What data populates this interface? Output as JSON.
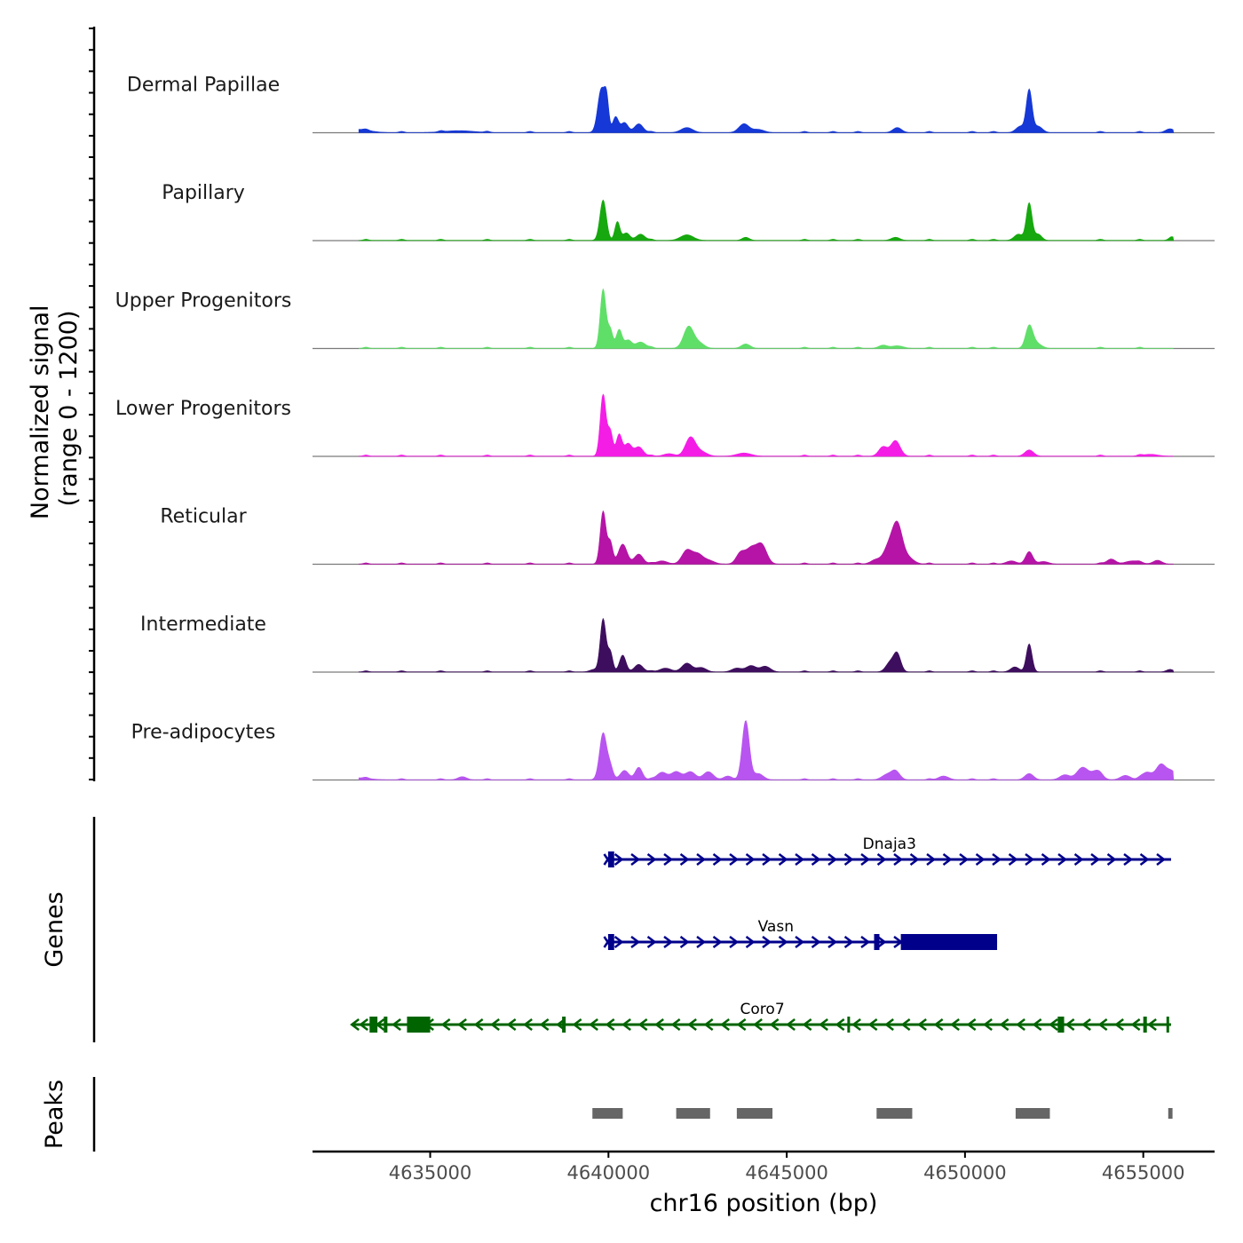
{
  "chart_data": {
    "type": "area",
    "chromosome": "chr16",
    "xlabel": "chr16 position (bp)",
    "xlim": [
      4631700,
      4657000
    ],
    "xticks": [
      4635000,
      4640000,
      4645000,
      4650000,
      4655000
    ],
    "xtick_labels": [
      "4635000",
      "4640000",
      "4645000",
      "4650000",
      "4655000"
    ],
    "signal_ylabel_line1": "Normalized signal",
    "signal_ylabel_line2": "(range 0 - 1200)",
    "signal_range": [
      0,
      1200
    ],
    "tracks": [
      {
        "name": "Dermal Papillae",
        "color": "#1538d6",
        "peaks": [
          [
            4633000,
            0.5,
            300
          ],
          [
            4635800,
            0.3,
            400
          ],
          [
            4639800,
            7,
            100
          ],
          [
            4639950,
            4.5,
            60
          ],
          [
            4640200,
            2.5,
            80
          ],
          [
            4640450,
            1.6,
            100
          ],
          [
            4640850,
            1.4,
            120
          ],
          [
            4642200,
            0.8,
            160
          ],
          [
            4643800,
            1.4,
            140
          ],
          [
            4644200,
            0.5,
            160
          ],
          [
            4648100,
            0.8,
            120
          ],
          [
            4651550,
            1,
            120
          ],
          [
            4651800,
            6.8,
            80
          ],
          [
            4652050,
            1,
            120
          ],
          [
            4655750,
            0.6,
            120
          ]
        ]
      },
      {
        "name": "Papillary",
        "color": "#16a80e",
        "peaks": [
          [
            4639850,
            6.5,
            90
          ],
          [
            4640250,
            3,
            70
          ],
          [
            4640500,
            1.2,
            100
          ],
          [
            4640900,
            1,
            120
          ],
          [
            4642200,
            0.9,
            180
          ],
          [
            4643850,
            0.5,
            100
          ],
          [
            4648050,
            0.5,
            120
          ],
          [
            4651500,
            1,
            120
          ],
          [
            4651800,
            6,
            80
          ],
          [
            4652050,
            1,
            100
          ],
          [
            4655800,
            0.6,
            80
          ]
        ]
      },
      {
        "name": "Upper Progenitors",
        "color": "#5fdf68",
        "peaks": [
          [
            4639850,
            9.5,
            80
          ],
          [
            4640050,
            3,
            70
          ],
          [
            4640300,
            3,
            80
          ],
          [
            4640550,
            1.3,
            100
          ],
          [
            4640900,
            1,
            140
          ],
          [
            4642250,
            3.5,
            140
          ],
          [
            4642550,
            0.8,
            140
          ],
          [
            4643850,
            0.7,
            120
          ],
          [
            4647700,
            0.5,
            120
          ],
          [
            4648100,
            0.4,
            160
          ],
          [
            4651800,
            3.5,
            100
          ],
          [
            4652000,
            0.8,
            140
          ]
        ]
      },
      {
        "name": "Lower Progenitors",
        "color": "#f41de6",
        "peaks": [
          [
            4639850,
            10,
            80
          ],
          [
            4640050,
            4,
            70
          ],
          [
            4640300,
            3.5,
            80
          ],
          [
            4640550,
            2,
            100
          ],
          [
            4640850,
            1.5,
            120
          ],
          [
            4641700,
            0.4,
            150
          ],
          [
            4642300,
            3,
            140
          ],
          [
            4642600,
            0.7,
            160
          ],
          [
            4643800,
            0.5,
            200
          ],
          [
            4647700,
            1.5,
            120
          ],
          [
            4648050,
            2.5,
            130
          ],
          [
            4651800,
            1,
            120
          ],
          [
            4655200,
            0.3,
            200
          ]
        ]
      },
      {
        "name": "Reticular",
        "color": "#b514a6",
        "peaks": [
          [
            4639850,
            8.5,
            80
          ],
          [
            4640050,
            3.5,
            70
          ],
          [
            4640400,
            3.2,
            120
          ],
          [
            4640850,
            1.6,
            120
          ],
          [
            4641500,
            0.5,
            150
          ],
          [
            4642200,
            2.2,
            140
          ],
          [
            4642500,
            1.5,
            140
          ],
          [
            4642800,
            0.6,
            160
          ],
          [
            4643700,
            1.7,
            120
          ],
          [
            4644000,
            2.5,
            150
          ],
          [
            4644300,
            3,
            140
          ],
          [
            4647500,
            0.7,
            140
          ],
          [
            4647850,
            2.5,
            140
          ],
          [
            4648100,
            6.2,
            140
          ],
          [
            4648400,
            1,
            160
          ],
          [
            4651300,
            0.5,
            140
          ],
          [
            4651800,
            2,
            100
          ],
          [
            4652200,
            0.4,
            140
          ],
          [
            4654100,
            0.8,
            120
          ],
          [
            4654700,
            0.5,
            200
          ],
          [
            4655400,
            0.6,
            120
          ]
        ]
      },
      {
        "name": "Intermediate",
        "color": "#3e0e5e",
        "peaks": [
          [
            4639600,
            0.4,
            120
          ],
          [
            4639850,
            8.5,
            80
          ],
          [
            4640050,
            3.2,
            70
          ],
          [
            4640400,
            2.7,
            90
          ],
          [
            4640850,
            1.2,
            120
          ],
          [
            4641600,
            0.6,
            160
          ],
          [
            4642200,
            1.4,
            140
          ],
          [
            4642600,
            0.7,
            140
          ],
          [
            4643600,
            0.6,
            140
          ],
          [
            4644000,
            1,
            140
          ],
          [
            4644400,
            0.9,
            140
          ],
          [
            4647900,
            1.5,
            120
          ],
          [
            4648100,
            2.8,
            100
          ],
          [
            4651400,
            0.8,
            120
          ],
          [
            4651800,
            4.5,
            80
          ],
          [
            4655750,
            0.4,
            100
          ]
        ]
      },
      {
        "name": "Pre-adipocytes",
        "color": "#b855f0",
        "peaks": [
          [
            4633000,
            0.3,
            300
          ],
          [
            4635900,
            0.5,
            120
          ],
          [
            4639850,
            7.5,
            100
          ],
          [
            4640050,
            2,
            80
          ],
          [
            4640450,
            1.5,
            120
          ],
          [
            4640850,
            2,
            100
          ],
          [
            4641500,
            1.2,
            140
          ],
          [
            4641900,
            1.3,
            140
          ],
          [
            4642300,
            1.3,
            140
          ],
          [
            4642800,
            1.3,
            140
          ],
          [
            4643350,
            0.6,
            120
          ],
          [
            4643850,
            9.5,
            100
          ],
          [
            4644200,
            1,
            140
          ],
          [
            4647800,
            0.8,
            140
          ],
          [
            4648050,
            1.4,
            120
          ],
          [
            4649400,
            0.6,
            140
          ],
          [
            4651800,
            1,
            120
          ],
          [
            4652800,
            0.8,
            140
          ],
          [
            4653300,
            2,
            160
          ],
          [
            4653700,
            1.4,
            140
          ],
          [
            4654500,
            0.7,
            140
          ],
          [
            4655100,
            1.2,
            140
          ],
          [
            4655500,
            2.5,
            140
          ],
          [
            4655800,
            1.3,
            120
          ]
        ]
      }
    ],
    "genes_label": "Genes",
    "genes": [
      {
        "name": "Dnaja3",
        "strand": "+",
        "color": "#00008b",
        "start": 4639980,
        "end": 4655780,
        "exons": [
          [
            4639990,
            4640160
          ]
        ],
        "utr": []
      },
      {
        "name": "Vasn",
        "strand": "+",
        "color": "#00008b",
        "start": 4639980,
        "end": 4650900,
        "exons": [
          [
            4639990,
            4640160
          ],
          [
            4647450,
            4647600
          ]
        ],
        "utr": [
          [
            4648200,
            4650900
          ]
        ]
      },
      {
        "name": "Coro7",
        "strand": "-",
        "color": "#006400",
        "start": 4632850,
        "end": 4655780,
        "exons": [
          [
            4633300,
            4633520
          ],
          [
            4633700,
            4633800
          ],
          [
            4634350,
            4635000
          ],
          [
            4638700,
            4638800
          ],
          [
            4646700,
            4646750
          ],
          [
            4652600,
            4652780
          ],
          [
            4655000,
            4655100
          ],
          [
            4655650,
            4655720
          ]
        ],
        "utr": [
          [
            4634500,
            4634900
          ]
        ]
      }
    ],
    "peaks_label": "Peaks",
    "peak_regions": [
      [
        4639550,
        4640400
      ],
      [
        4641900,
        4642850
      ],
      [
        4643600,
        4644600
      ],
      [
        4647520,
        4648520
      ],
      [
        4651420,
        4652380
      ],
      [
        4655700,
        4655820
      ]
    ],
    "peak_region_color": "#666666"
  }
}
